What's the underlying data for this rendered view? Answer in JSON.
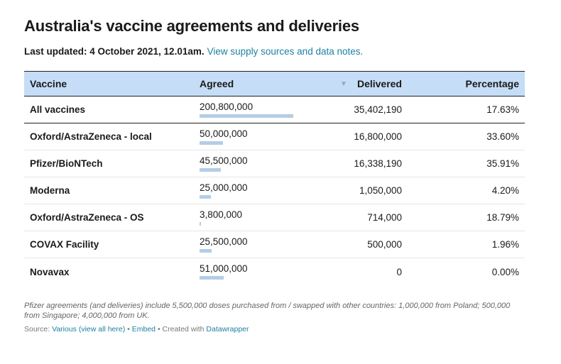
{
  "title": "Australia's vaccine agreements and deliveries",
  "subtitle": {
    "updated": "Last updated: 4 October 2021, 12.01am.",
    "link": "View supply sources and data notes."
  },
  "sort_icon": "sort-descending-triangle",
  "colors": {
    "header_bg": "#c5ddf6",
    "bar": "#b3cde6",
    "link": "#1d81a2"
  },
  "chart_data": {
    "type": "table",
    "columns": [
      "Vaccine",
      "Agreed",
      "Delivered",
      "Percentage"
    ],
    "rows": [
      {
        "vaccine": "All vaccines",
        "agreed": 200800000,
        "agreed_label": "200,800,000",
        "delivered": "35,402,190",
        "percentage": "17.63%"
      },
      {
        "vaccine": "Oxford/AstraZeneca - local",
        "agreed": 50000000,
        "agreed_label": "50,000,000",
        "delivered": "16,800,000",
        "percentage": "33.60%"
      },
      {
        "vaccine": "Pfizer/BioNTech",
        "agreed": 45500000,
        "agreed_label": "45,500,000",
        "delivered": "16,338,190",
        "percentage": "35.91%"
      },
      {
        "vaccine": "Moderna",
        "agreed": 25000000,
        "agreed_label": "25,000,000",
        "delivered": "1,050,000",
        "percentage": "4.20%"
      },
      {
        "vaccine": "Oxford/AstraZeneca - OS",
        "agreed": 3800000,
        "agreed_label": "3,800,000",
        "delivered": "714,000",
        "percentage": "18.79%"
      },
      {
        "vaccine": "COVAX Facility",
        "agreed": 25500000,
        "agreed_label": "25,500,000",
        "delivered": "500,000",
        "percentage": "1.96%"
      },
      {
        "vaccine": "Novavax",
        "agreed": 51000000,
        "agreed_label": "51,000,000",
        "delivered": "0",
        "percentage": "0.00%"
      }
    ],
    "bar_max": 200800000
  },
  "notes": "Pfizer agreements (and deliveries) include 5,500,000 doses purchased from / swapped with other countries: 1,000,000 from Poland; 500,000 from Singapore; 4,000,000 from UK.",
  "footer": {
    "source_label": "Source:",
    "source_link": "Various (view all here)",
    "sep1": "•",
    "embed": "Embed",
    "sep2": "• Created with",
    "created_with": "Datawrapper"
  }
}
